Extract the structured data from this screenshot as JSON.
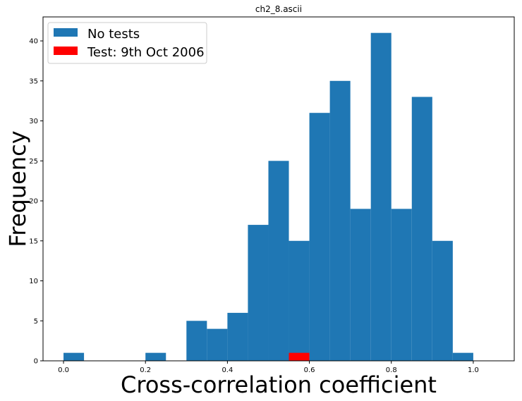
{
  "chart_data": {
    "type": "bar",
    "title": "ch2_8.ascii",
    "xlabel": "Cross-correlation coefficient",
    "ylabel": "Frequency",
    "xlim": [
      -0.05,
      1.1
    ],
    "ylim": [
      0,
      43
    ],
    "bin_width": 0.05,
    "xticks": [
      "0.0",
      "0.2",
      "0.4",
      "0.6",
      "0.8",
      "1.0"
    ],
    "yticks": [
      "0",
      "5",
      "10",
      "15",
      "20",
      "25",
      "30",
      "35",
      "40"
    ],
    "grid": false,
    "legend_position": "top-left",
    "series": [
      {
        "name": "No tests",
        "color": "#1f77b4",
        "bins": [
          {
            "x": 0.0,
            "value": 1
          },
          {
            "x": 0.2,
            "value": 1
          },
          {
            "x": 0.3,
            "value": 5
          },
          {
            "x": 0.35,
            "value": 4
          },
          {
            "x": 0.4,
            "value": 6
          },
          {
            "x": 0.45,
            "value": 17
          },
          {
            "x": 0.5,
            "value": 25
          },
          {
            "x": 0.55,
            "value": 15
          },
          {
            "x": 0.6,
            "value": 31
          },
          {
            "x": 0.65,
            "value": 35
          },
          {
            "x": 0.7,
            "value": 19
          },
          {
            "x": 0.75,
            "value": 41
          },
          {
            "x": 0.8,
            "value": 19
          },
          {
            "x": 0.85,
            "value": 33
          },
          {
            "x": 0.9,
            "value": 15
          },
          {
            "x": 0.95,
            "value": 1
          }
        ]
      },
      {
        "name": "Test: 9th Oct 2006",
        "color": "#ff0000",
        "bins": [
          {
            "x": 0.55,
            "value": 1
          }
        ]
      }
    ]
  }
}
